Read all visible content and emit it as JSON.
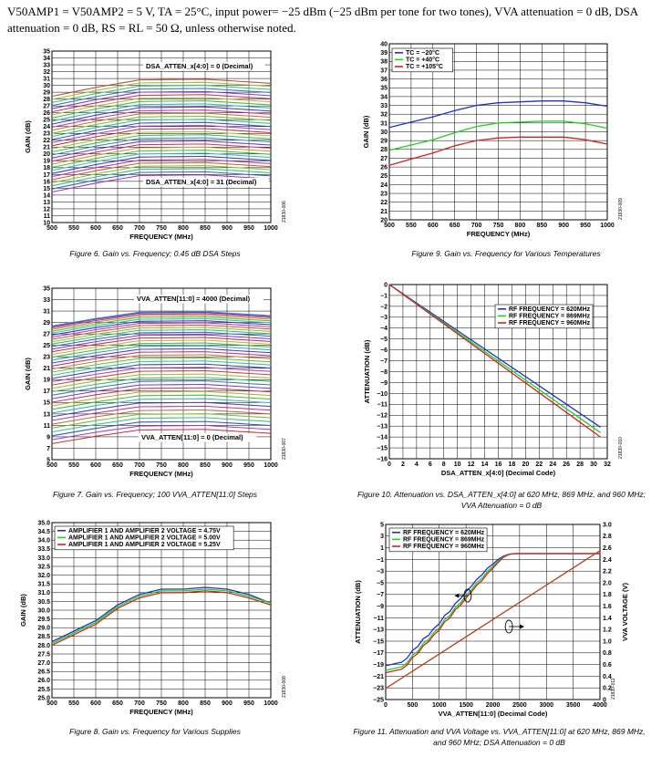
{
  "header": {
    "conditions": "V50AMP1 = V50AMP2 = 5 V, TA = 25°C, input power= −25 dBm (−25 dBm per tone for two tones), VVA attenuation = 0 dB, DSA attenuation = 0 dB, RS = RL = 50 Ω, unless otherwise noted."
  },
  "chart_data": [
    {
      "id": "fig6",
      "type": "line",
      "caption": "Figure 6. Gain vs. Frequency; 0.45 dB DSA Steps",
      "code": "21830-006",
      "xlabel": "FREQUENCY (MHz)",
      "ylabel": "GAIN (dB)",
      "xlim": [
        500,
        1000
      ],
      "ylim": [
        10,
        35
      ],
      "xticks": [
        500,
        550,
        600,
        650,
        700,
        750,
        800,
        850,
        900,
        950,
        1000
      ],
      "yticks": [
        10,
        11,
        12,
        13,
        14,
        15,
        16,
        17,
        18,
        19,
        20,
        21,
        22,
        23,
        24,
        25,
        26,
        27,
        28,
        29,
        30,
        31,
        32,
        33,
        34,
        35
      ],
      "grid": true,
      "annotations": [
        "DSA_ATTEN_x[4:0] = 0 (Decimal)",
        "DSA_ATTEN_x[4:0] = 31 (Decimal)"
      ],
      "family": {
        "count": 32,
        "top_at_700": 30.8,
        "step": 0.45,
        "shape_x": [
          500,
          600,
          700,
          850,
          1000
        ],
        "shape_offset": [
          -2.4,
          -1.1,
          0,
          0.1,
          -0.5
        ]
      }
    },
    {
      "id": "fig9",
      "type": "line",
      "caption": "Figure 9. Gain vs. Frequency for Various Temperatures",
      "code": "21830-009",
      "xlabel": "FREQUENCY (MHz)",
      "ylabel": "GAIN (dB)",
      "xlim": [
        500,
        1000
      ],
      "ylim": [
        20,
        40
      ],
      "xticks": [
        500,
        550,
        600,
        650,
        700,
        750,
        800,
        850,
        900,
        950,
        1000
      ],
      "yticks": [
        20,
        21,
        22,
        23,
        24,
        25,
        26,
        27,
        28,
        29,
        30,
        31,
        32,
        33,
        34,
        35,
        36,
        37,
        38,
        39,
        40
      ],
      "grid": true,
      "legend_position": "top-left",
      "x": [
        500,
        550,
        600,
        650,
        700,
        750,
        800,
        850,
        900,
        950,
        1000
      ],
      "series": [
        {
          "name": "TC = −20°C",
          "color": "#1f2fd6",
          "values": [
            30.5,
            31.1,
            31.7,
            32.4,
            33.0,
            33.3,
            33.4,
            33.5,
            33.5,
            33.3,
            32.9
          ]
        },
        {
          "name": "TC = +40°C",
          "color": "#1ed21e",
          "values": [
            27.9,
            28.5,
            29.1,
            29.9,
            30.6,
            31.0,
            31.1,
            31.2,
            31.2,
            30.9,
            30.4
          ]
        },
        {
          "name": "TC = +105°C",
          "color": "#d62020",
          "values": [
            26.2,
            26.9,
            27.6,
            28.4,
            29.0,
            29.3,
            29.4,
            29.4,
            29.4,
            29.1,
            28.6
          ]
        }
      ]
    },
    {
      "id": "fig7",
      "type": "line",
      "caption": "Figure 7. Gain vs. Frequency; 100 VVA_ATTEN[11:0] Steps",
      "code": "21830-007",
      "xlabel": "FREQUENCY (MHz)",
      "ylabel": "GAIN (dB)",
      "xlim": [
        500,
        1000
      ],
      "ylim": [
        5,
        35
      ],
      "xticks": [
        500,
        550,
        600,
        650,
        700,
        750,
        800,
        850,
        900,
        950,
        1000
      ],
      "yticks": [
        5,
        7,
        9,
        11,
        13,
        15,
        17,
        19,
        21,
        23,
        25,
        27,
        29,
        31,
        33,
        35
      ],
      "grid": true,
      "annotations": [
        "VVA_ATTEN[11:0] = 4000 (Decimal)",
        "VVA_ATTEN[11:0] = 0 (Decimal)"
      ],
      "family": {
        "count": 41,
        "top_at_700": 30.8,
        "bottom_at_700": 10.2,
        "shape_x": [
          500,
          600,
          700,
          850,
          1000
        ],
        "shape_offset": [
          -2.4,
          -1.1,
          0,
          0.1,
          -0.6
        ]
      }
    },
    {
      "id": "fig10",
      "type": "line",
      "caption": "Figure 10. Attenuation vs. DSA_ATTEN_x[4:0] at 620 MHz, 869 MHz, and 960 MHz; VVA Attenuation = 0 dB",
      "code": "21830-010",
      "xlabel": "DSA_ATTEN_x[4:0] (Decimal Code)",
      "ylabel": "ATTENUATION (dB)",
      "xlim": [
        0,
        32
      ],
      "ylim": [
        -16,
        0
      ],
      "xticks": [
        0,
        2,
        4,
        6,
        8,
        10,
        12,
        14,
        16,
        18,
        20,
        22,
        24,
        26,
        28,
        30,
        32
      ],
      "yticks": [
        0,
        -1,
        -2,
        -3,
        -4,
        -5,
        -6,
        -7,
        -8,
        -9,
        -10,
        -11,
        -12,
        -13,
        -14,
        -15,
        -16
      ],
      "grid": true,
      "legend_position": "top-right",
      "x": [
        0,
        31
      ],
      "series": [
        {
          "name": "RF FREQUENCY = 620MHz",
          "color": "#1f2fd6",
          "values": [
            0,
            -13.1
          ]
        },
        {
          "name": "RF FREQUENCY = 869MHz",
          "color": "#1ed21e",
          "values": [
            0,
            -13.6
          ]
        },
        {
          "name": "RF FREQUENCY = 960MHz",
          "color": "#d62020",
          "values": [
            0,
            -14.0
          ]
        }
      ]
    },
    {
      "id": "fig8",
      "type": "line",
      "caption": "Figure 8. Gain vs. Frequency for Various Supplies",
      "code": "21830-008",
      "xlabel": "FREQUENCY (MHz)",
      "ylabel": "GAIN (dB)",
      "xlim": [
        500,
        1000
      ],
      "ylim": [
        25,
        35
      ],
      "xticks": [
        500,
        550,
        600,
        650,
        700,
        750,
        800,
        850,
        900,
        950,
        1000
      ],
      "yticks": [
        "25.0",
        "25.5",
        "26.0",
        "26.5",
        "27.0",
        "27.5",
        "28.0",
        "28.5",
        "29.0",
        "29.5",
        "30.0",
        "30.5",
        "31.0",
        "31.5",
        "32.0",
        "32.5",
        "33.0",
        "33.5",
        "34.0",
        "34.5",
        "35.0"
      ],
      "grid": true,
      "legend_position": "top-left",
      "x": [
        500,
        550,
        600,
        650,
        700,
        750,
        800,
        850,
        900,
        950,
        1000
      ],
      "series": [
        {
          "name": "AMPLIFIER 1 AND AMPLIFIER 2 VOLTAGE = 4.75V",
          "color": "#1f2fd6",
          "values": [
            28.2,
            28.8,
            29.4,
            30.3,
            30.9,
            31.2,
            31.2,
            31.3,
            31.2,
            30.9,
            30.4
          ]
        },
        {
          "name": "AMPLIFIER 1 AND AMPLIFIER 2 VOLTAGE = 5.00V",
          "color": "#1ed21e",
          "values": [
            28.1,
            28.7,
            29.3,
            30.2,
            30.8,
            31.1,
            31.1,
            31.2,
            31.1,
            30.8,
            30.4
          ]
        },
        {
          "name": "AMPLIFIER 1 AND AMPLIFIER 2 VOLTAGE = 5.25V",
          "color": "#d62020",
          "values": [
            28.0,
            28.6,
            29.2,
            30.1,
            30.7,
            31.0,
            31.0,
            31.1,
            31.0,
            30.7,
            30.3
          ]
        }
      ]
    },
    {
      "id": "fig11",
      "type": "line",
      "caption": "Figure 11. Attenuation and VVA Voltage vs. VVA_ATTEN[11:0] at 620 MHz, 869 MHz, and 960 MHz; DSA Attenuation = 0 dB",
      "code": "21830-011",
      "xlabel": "VVA_ATTEN[11:0] (Decimal Code)",
      "ylabel": "ATTENUATION (dB)",
      "y2label": "VVA VOLTAGE (V)",
      "xlim": [
        0,
        4000
      ],
      "ylim": [
        -25,
        5
      ],
      "y2lim": [
        0,
        3.0
      ],
      "xticks": [
        0,
        500,
        1000,
        1500,
        2000,
        2500,
        3000,
        3500,
        4000
      ],
      "yticks": [
        5,
        3,
        1,
        -1,
        -3,
        -5,
        -7,
        -9,
        -11,
        -13,
        -15,
        -17,
        -19,
        -21,
        -23,
        -25
      ],
      "y2ticks": [
        "3.0",
        "2.8",
        "2.6",
        "2.4",
        "2.2",
        "2.0",
        "1.8",
        "1.6",
        "1.4",
        "1.2",
        "1.0",
        "0.8",
        "0.6",
        "0.4",
        "0.2",
        "0"
      ],
      "grid": true,
      "legend_position": "top-left",
      "x": [
        0,
        100,
        200,
        300,
        400,
        500,
        600,
        700,
        800,
        900,
        1000,
        1100,
        1200,
        1300,
        1400,
        1500,
        1600,
        1700,
        1800,
        1900,
        2000,
        2100,
        2200,
        2300,
        2400,
        2500,
        3000,
        3500,
        4000
      ],
      "series": [
        {
          "name": "RF FREQUENCY = 620MHz",
          "color": "#1f2fd6",
          "values": [
            -19.2,
            -19.0,
            -18.8,
            -18.6,
            -17.9,
            -16.6,
            -15.9,
            -14.6,
            -14.0,
            -12.8,
            -12.0,
            -10.6,
            -9.9,
            -8.5,
            -7.7,
            -6.5,
            -5.6,
            -4.4,
            -3.6,
            -2.5,
            -1.8,
            -1.0,
            -0.4,
            -0.1,
            0,
            0,
            0,
            0,
            0
          ]
        },
        {
          "name": "RF FREQUENCY = 869MHz",
          "color": "#1ed21e",
          "values": [
            -20.0,
            -19.8,
            -19.6,
            -19.4,
            -18.7,
            -17.4,
            -16.7,
            -15.4,
            -14.7,
            -13.5,
            -12.7,
            -11.3,
            -10.6,
            -9.2,
            -8.4,
            -7.2,
            -6.2,
            -5.0,
            -4.2,
            -3.0,
            -2.2,
            -1.3,
            -0.5,
            -0.1,
            0,
            0,
            0,
            0,
            0
          ]
        },
        {
          "name": "RF FREQUENCY = 960MHz",
          "color": "#d62020",
          "values": [
            -20.4,
            -20.2,
            -20.0,
            -19.8,
            -19.1,
            -17.8,
            -17.1,
            -15.8,
            -15.1,
            -13.9,
            -13.1,
            -11.7,
            -11.0,
            -9.6,
            -8.8,
            -7.6,
            -6.6,
            -5.4,
            -4.6,
            -3.4,
            -2.5,
            -1.5,
            -0.6,
            -0.15,
            0,
            0,
            0,
            0,
            0
          ]
        }
      ],
      "vva_voltage": {
        "x": [
          0,
          4000
        ],
        "values": [
          0.19,
          2.55
        ],
        "color": "#b5441f"
      }
    }
  ]
}
